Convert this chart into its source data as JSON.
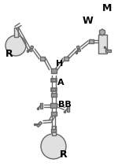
{
  "bg_color": "#ffffff",
  "label_R_left": "R",
  "label_R_bottom": "R",
  "label_H": "H",
  "label_A": "A",
  "label_BB": "BB",
  "label_W": "W",
  "label_M": "M",
  "font_size": 8,
  "lc": "#666666",
  "fc": "#cccccc",
  "lw": 1.0
}
